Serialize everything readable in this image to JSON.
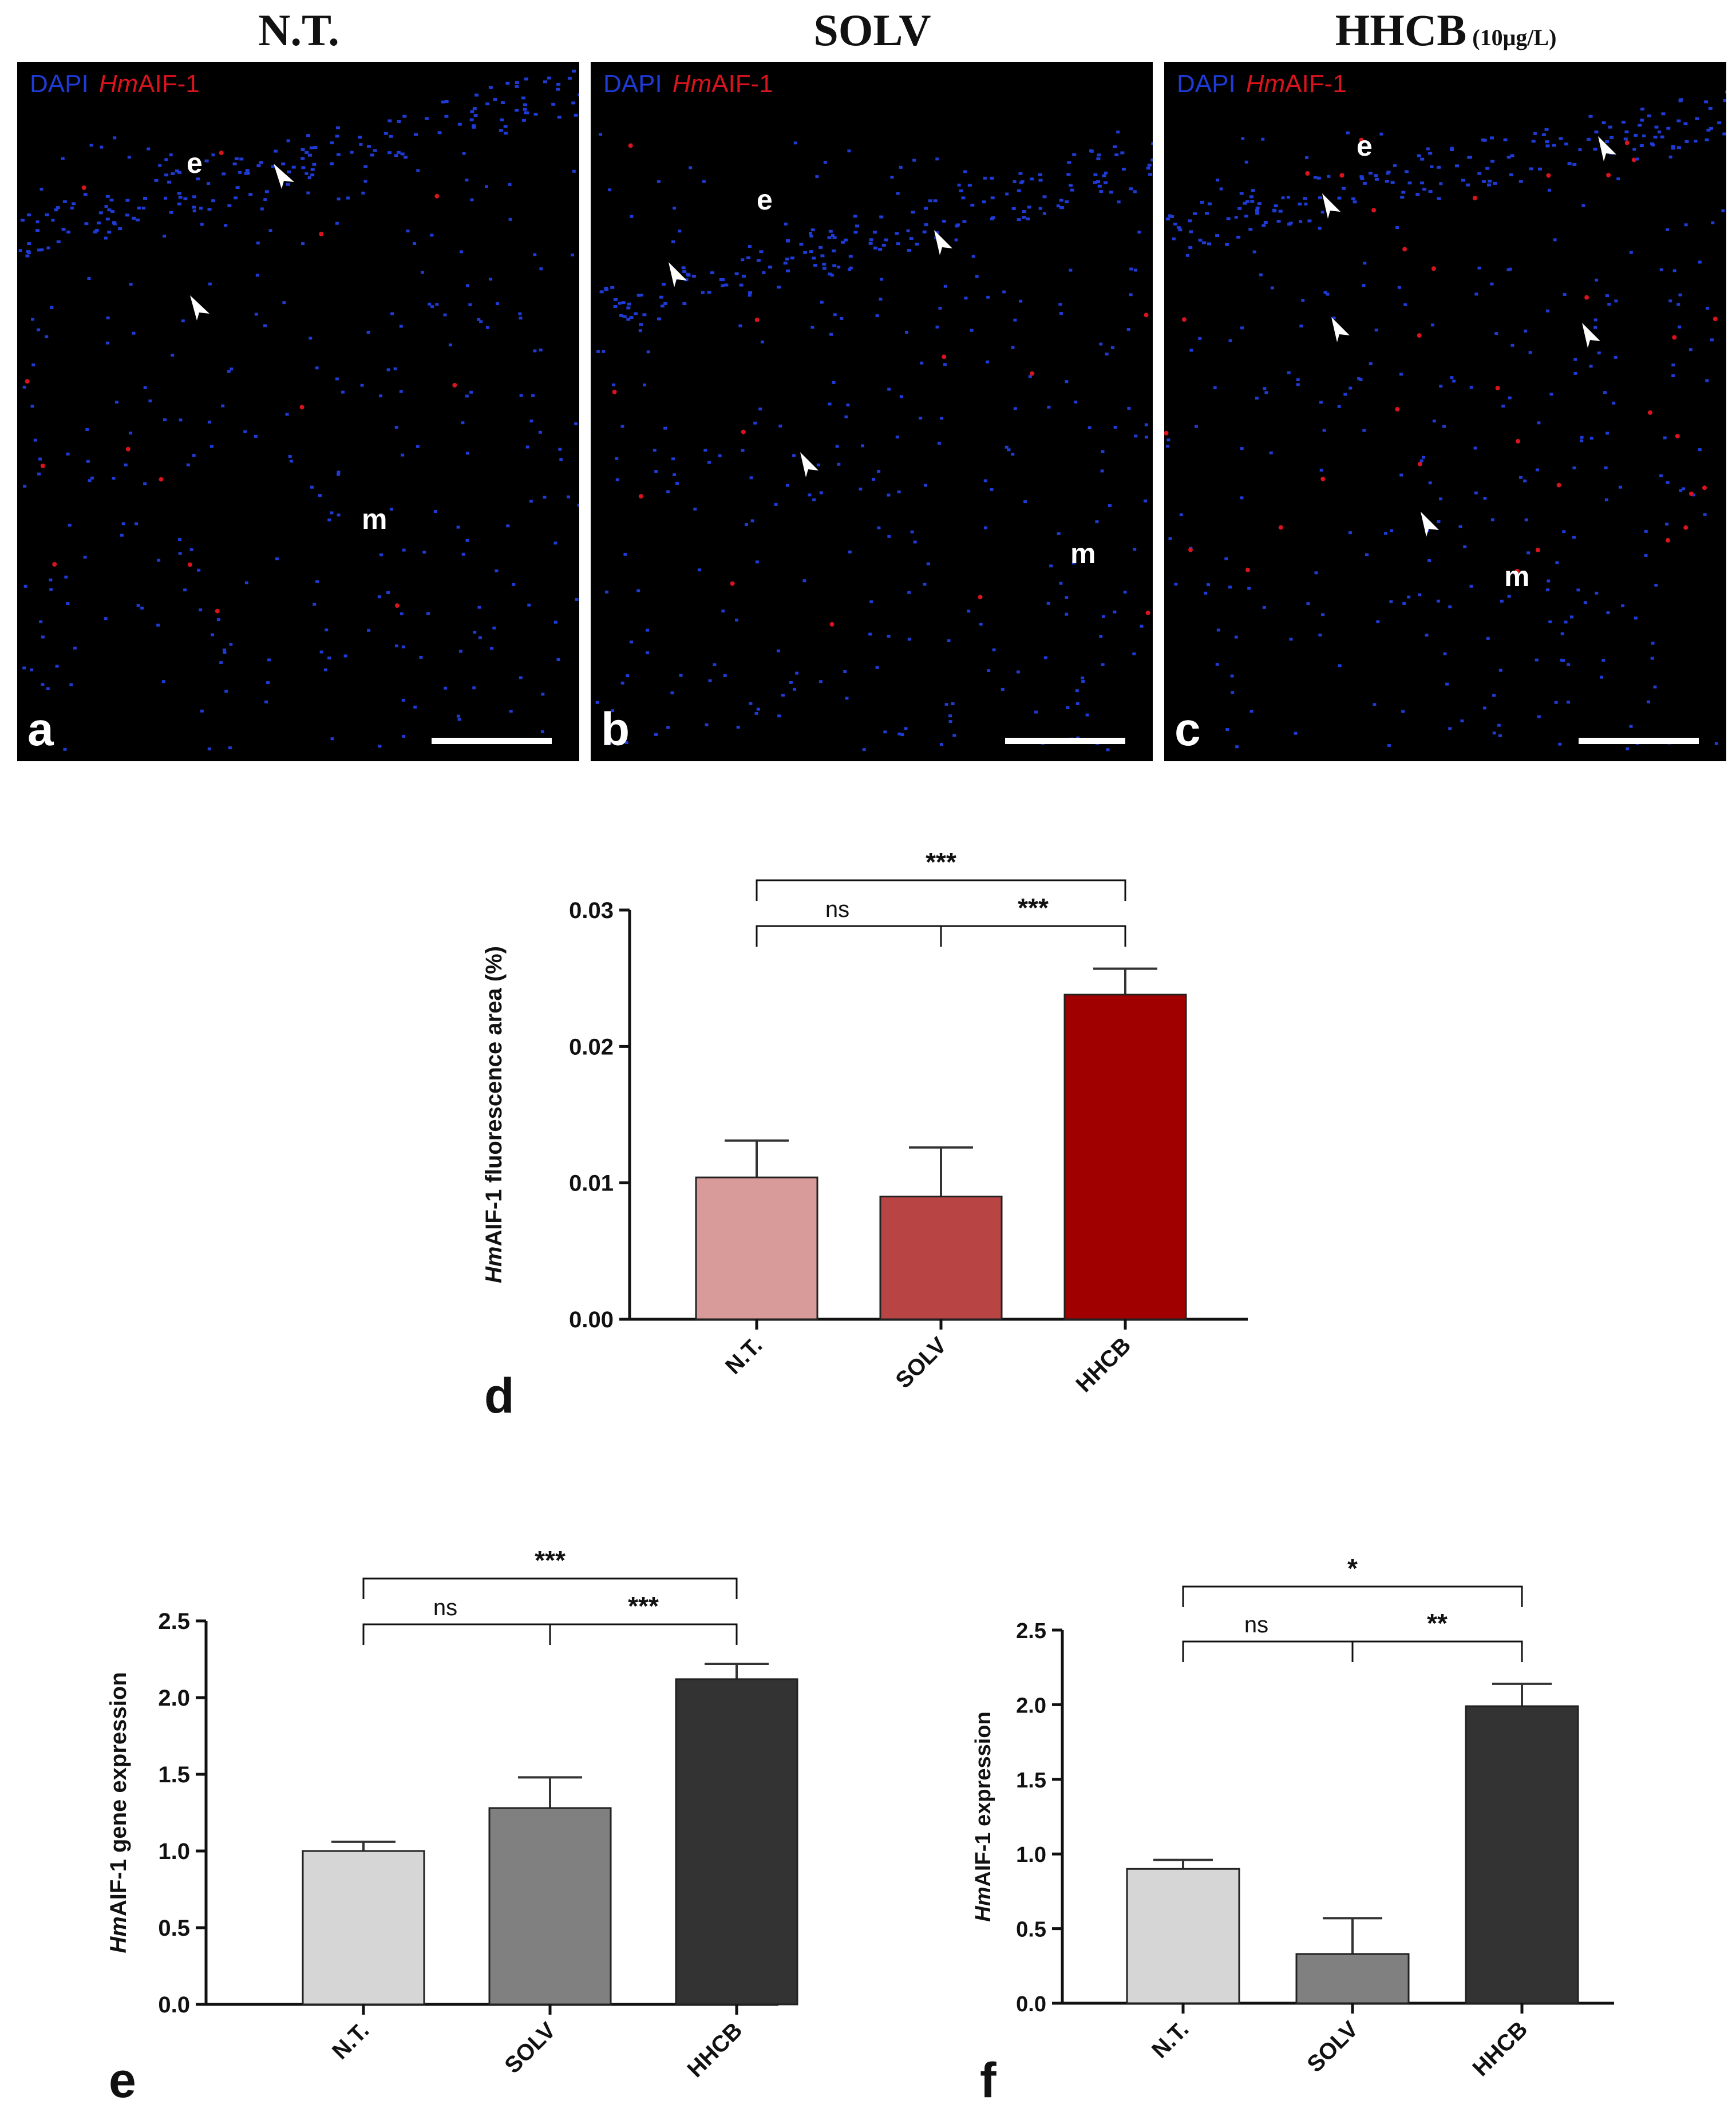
{
  "columns": [
    {
      "title": "N.T.",
      "subtitle": ""
    },
    {
      "title": "SOLV",
      "subtitle": ""
    },
    {
      "title": "HHCB",
      "subtitle": "(10μg/L)"
    }
  ],
  "stain_label": {
    "dapi": "DAPI",
    "aif_italic": "Hm",
    "aif_rest": "AIF-1"
  },
  "micrographs": [
    {
      "letter": "a",
      "label_e": "e",
      "label_m": "m"
    },
    {
      "letter": "b",
      "label_e": "e",
      "label_m": "m"
    },
    {
      "letter": "c",
      "label_e": "e",
      "label_m": "m"
    }
  ],
  "colors": {
    "dapi": "#1f3bd6",
    "aif": "#d8141e",
    "nt_d": "#d99a9a",
    "solv_d": "#b84444",
    "hhcb_d": "#a00000",
    "nt_ef": "#d6d6d6",
    "solv_ef": "#808080",
    "hhcb_ef": "#333333"
  },
  "chart_data": [
    {
      "panel": "d",
      "type": "bar",
      "categories": [
        "N.T.",
        "SOLV",
        "HHCB"
      ],
      "values": [
        0.0104,
        0.009,
        0.0238
      ],
      "errors": [
        0.0027,
        0.0036,
        0.0019
      ],
      "ylabel_italic": "Hm",
      "ylabel_rest": "AIF-1 fluorescence area (%)",
      "ylim": [
        0,
        0.03
      ],
      "yticks": [
        "0.00",
        "0.01",
        "0.02",
        "0.03"
      ],
      "ytick_values": [
        0,
        0.01,
        0.02,
        0.03
      ],
      "significance": {
        "top": "***",
        "left": "ns",
        "right": "***"
      }
    },
    {
      "panel": "e",
      "type": "bar",
      "categories": [
        "N.T.",
        "SOLV",
        "HHCB"
      ],
      "values": [
        1.0,
        1.28,
        2.12
      ],
      "errors": [
        0.06,
        0.2,
        0.1
      ],
      "ylabel_italic": "Hm",
      "ylabel_rest": "AIF-1 gene expression",
      "ylim": [
        0,
        2.5
      ],
      "yticks": [
        "0.0",
        "0.5",
        "1.0",
        "1.5",
        "2.0",
        "2.5"
      ],
      "ytick_values": [
        0,
        0.5,
        1.0,
        1.5,
        2.0,
        2.5
      ],
      "significance": {
        "top": "***",
        "left": "ns",
        "right": "***"
      }
    },
    {
      "panel": "f",
      "type": "bar",
      "categories": [
        "N.T.",
        "SOLV",
        "HHCB"
      ],
      "values": [
        0.9,
        0.33,
        1.99
      ],
      "errors": [
        0.06,
        0.24,
        0.15
      ],
      "ylabel_italic": "Hm",
      "ylabel_rest": "AIF-1 expression",
      "ylim": [
        0,
        2.5
      ],
      "yticks": [
        "0.0",
        "0.5",
        "1.0",
        "1.5",
        "2.0",
        "2.5"
      ],
      "ytick_values": [
        0,
        0.5,
        1.0,
        1.5,
        2.0,
        2.5
      ],
      "significance": {
        "top": "*",
        "left": "ns",
        "right": "**"
      }
    }
  ]
}
